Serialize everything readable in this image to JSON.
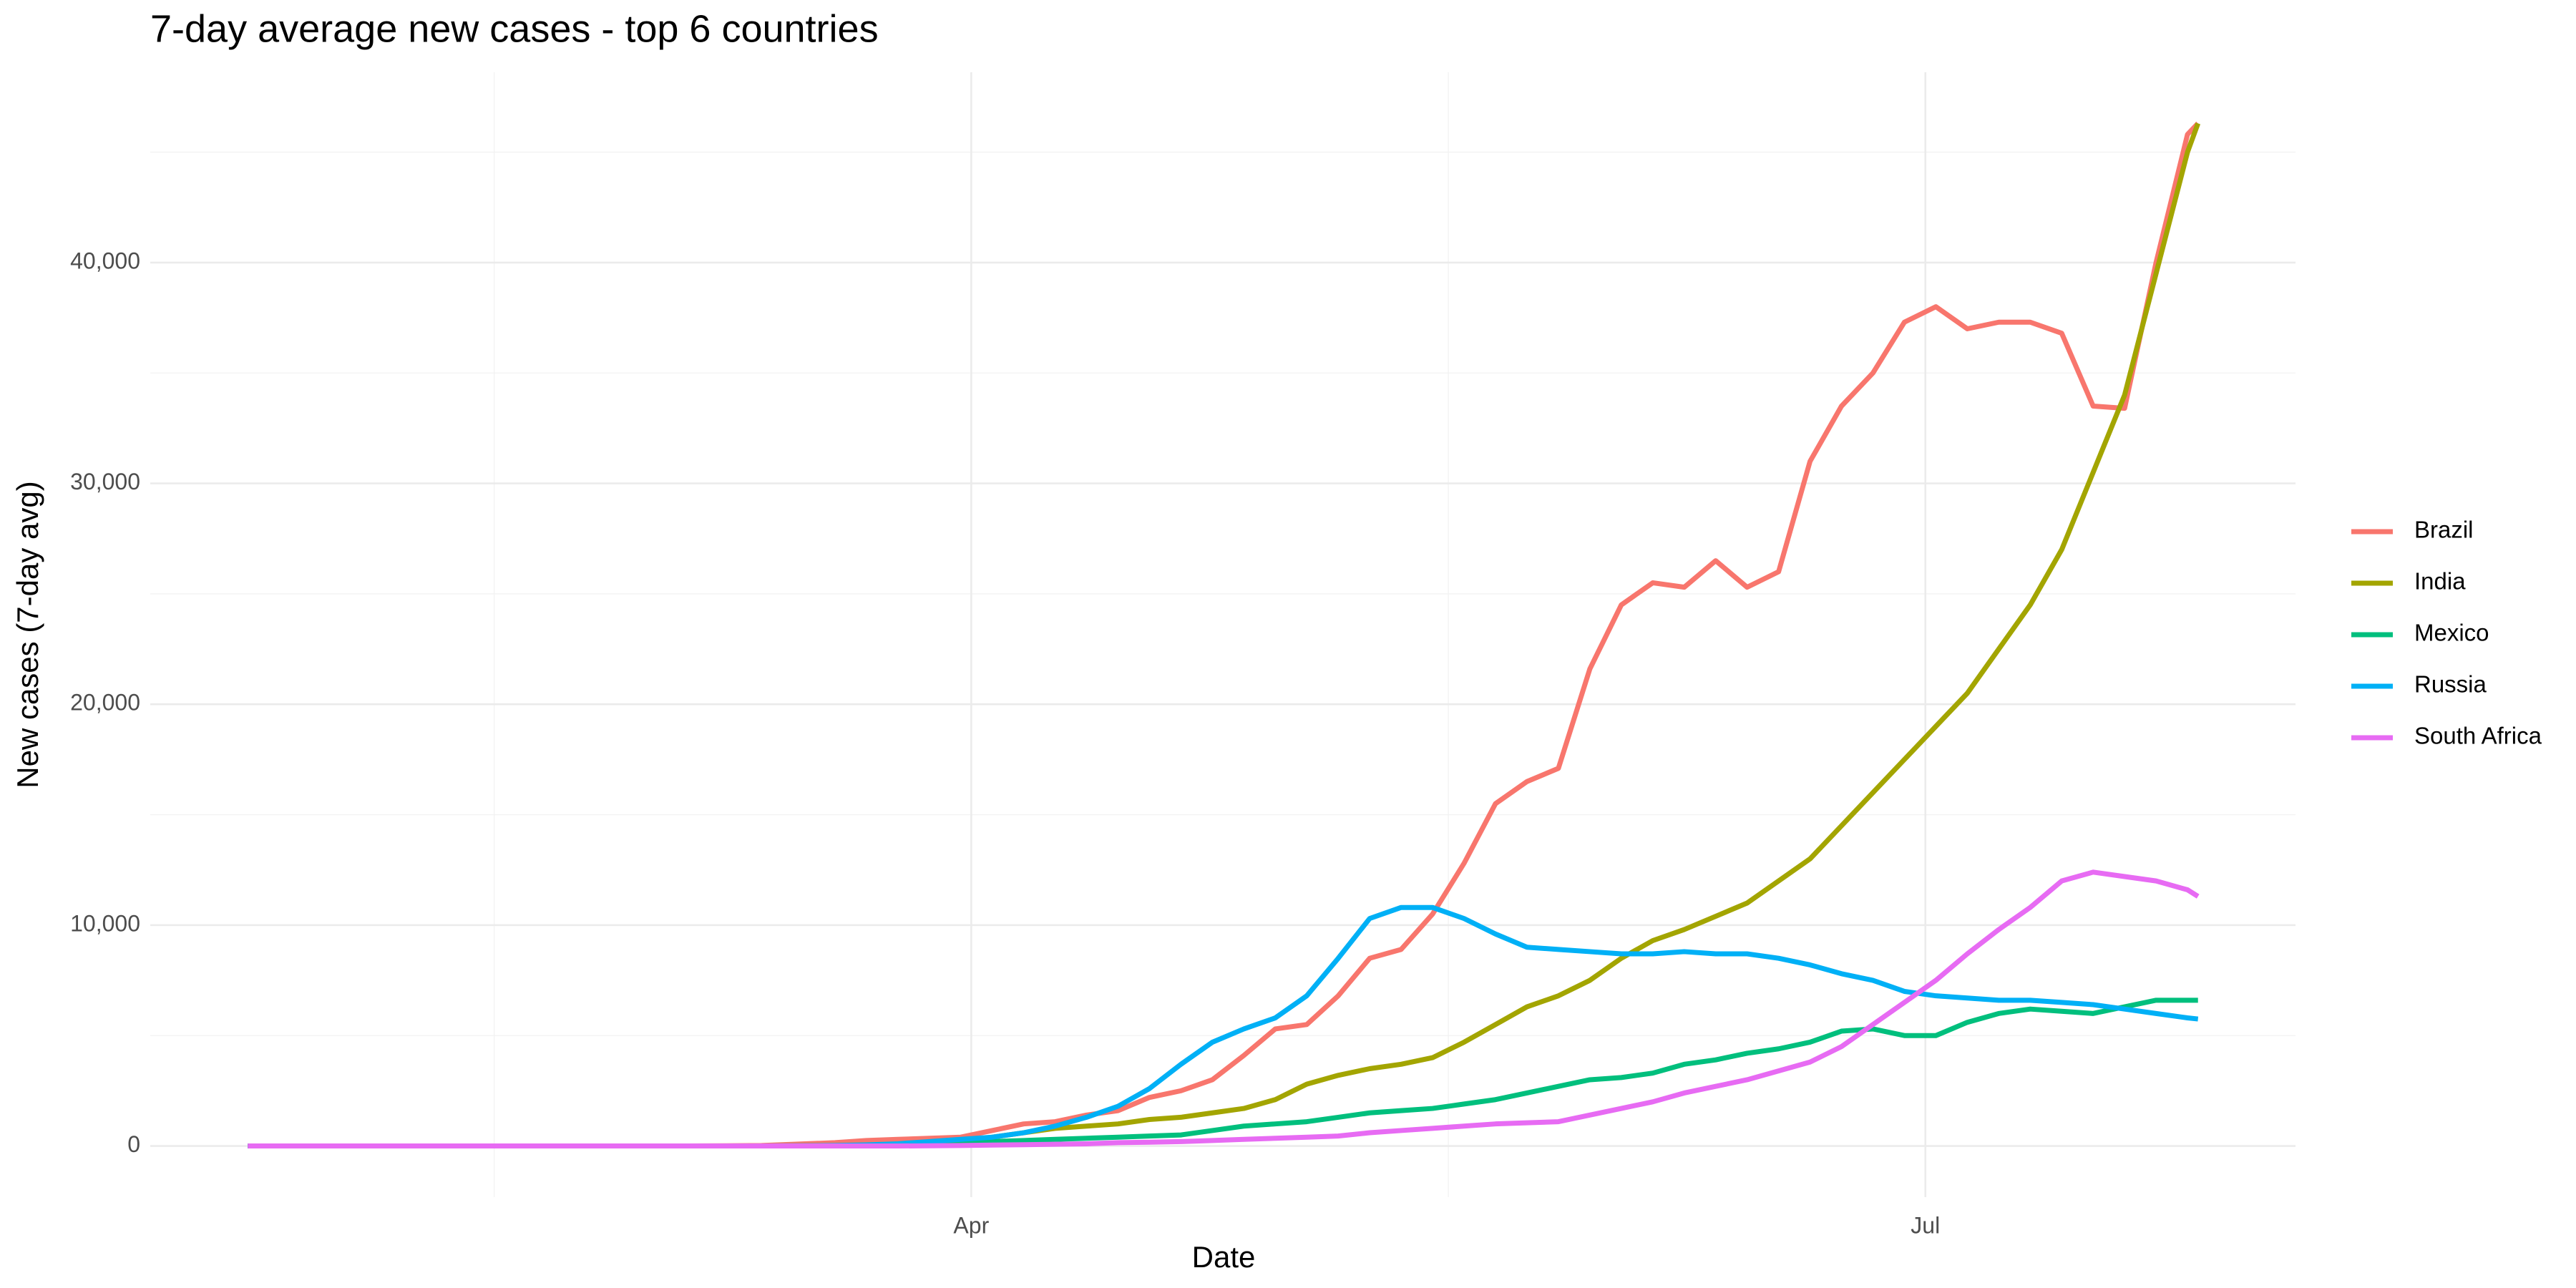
{
  "chart_data": {
    "type": "line",
    "title": "7-day average new cases - top 6 countries",
    "x_label": "Date",
    "y_label": "New cases (7-day avg)",
    "x": [
      23,
      37,
      51,
      65,
      72,
      79,
      82,
      85,
      88,
      91,
      94,
      97,
      100,
      103,
      106,
      109,
      112,
      115,
      118,
      121,
      124,
      127,
      130,
      133,
      136,
      139,
      142,
      145,
      148,
      151,
      154,
      157,
      160,
      163,
      166,
      169,
      172,
      175,
      178,
      181,
      184,
      187,
      190,
      193,
      196,
      199,
      202,
      205,
      208,
      209
    ],
    "series": [
      {
        "name": "Brazil",
        "color": "#F8766D",
        "values": [
          0,
          0,
          0,
          0,
          20,
          150,
          250,
          300,
          350,
          400,
          700,
          1000,
          1100,
          1400,
          1600,
          2200,
          2500,
          3000,
          4100,
          5300,
          5500,
          6800,
          8500,
          8900,
          10500,
          12800,
          15500,
          16500,
          17100,
          21600,
          24500,
          25500,
          25300,
          26500,
          25300,
          26000,
          31000,
          33500,
          35000,
          37300,
          38000,
          37000,
          37300,
          37300,
          36800,
          33500,
          33400,
          40000,
          45800,
          46300
        ]
      },
      {
        "name": "India",
        "color": "#A3A500",
        "values": [
          0,
          0,
          0,
          0,
          0,
          10,
          30,
          60,
          120,
          200,
          400,
          600,
          800,
          900,
          1000,
          1200,
          1300,
          1500,
          1700,
          2100,
          2800,
          3200,
          3500,
          3700,
          4000,
          4700,
          5500,
          6300,
          6800,
          7500,
          8500,
          9300,
          9800,
          10400,
          11000,
          12000,
          13000,
          14500,
          16000,
          17500,
          19000,
          20500,
          22500,
          24500,
          27000,
          30500,
          34000,
          39500,
          45000,
          46300
        ]
      },
      {
        "name": "Mexico",
        "color": "#00BF7D",
        "values": [
          0,
          0,
          0,
          0,
          0,
          0,
          10,
          30,
          80,
          150,
          200,
          250,
          300,
          350,
          400,
          450,
          500,
          700,
          900,
          1000,
          1100,
          1300,
          1500,
          1600,
          1700,
          1900,
          2100,
          2400,
          2700,
          3000,
          3100,
          3300,
          3700,
          3900,
          4200,
          4400,
          4700,
          5200,
          5300,
          5000,
          5000,
          5600,
          6000,
          6200,
          6100,
          6000,
          6300,
          6600,
          6600,
          6600
        ]
      },
      {
        "name": "Russia",
        "color": "#00B0F6",
        "values": [
          0,
          0,
          0,
          0,
          0,
          20,
          50,
          100,
          200,
          300,
          400,
          600,
          900,
          1300,
          1800,
          2600,
          3700,
          4700,
          5300,
          5800,
          6800,
          8500,
          10300,
          10800,
          10800,
          10300,
          9600,
          9000,
          8900,
          8800,
          8700,
          8700,
          8800,
          8700,
          8700,
          8500,
          8200,
          7800,
          7500,
          7000,
          6800,
          6700,
          6600,
          6600,
          6500,
          6400,
          6200,
          6000,
          5800,
          5750
        ]
      },
      {
        "name": "South Africa",
        "color": "#E76BF3",
        "values": [
          0,
          0,
          0,
          0,
          0,
          0,
          0,
          0,
          10,
          20,
          40,
          60,
          80,
          100,
          150,
          170,
          200,
          250,
          300,
          350,
          400,
          450,
          600,
          700,
          800,
          900,
          1000,
          1050,
          1100,
          1400,
          1700,
          2000,
          2400,
          2700,
          3000,
          3400,
          3800,
          4500,
          5500,
          6500,
          7500,
          8700,
          9800,
          10800,
          12000,
          12400,
          12200,
          12000,
          11600,
          11300
        ]
      }
    ],
    "xlim": [
      13.7,
      218.3
    ],
    "xticks": [
      {
        "value": 92,
        "label": "Apr"
      },
      {
        "value": 183,
        "label": "Jul"
      }
    ],
    "ylim": [
      -2315,
      48615
    ],
    "yticks": [
      0,
      {
        "value": 10000,
        "label": "10,000"
      },
      {
        "value": 20000,
        "label": "20,000"
      },
      {
        "value": 30000,
        "label": "30,000"
      },
      {
        "value": 40000,
        "label": "40,000"
      }
    ],
    "grid": true,
    "legend_position": "right"
  }
}
